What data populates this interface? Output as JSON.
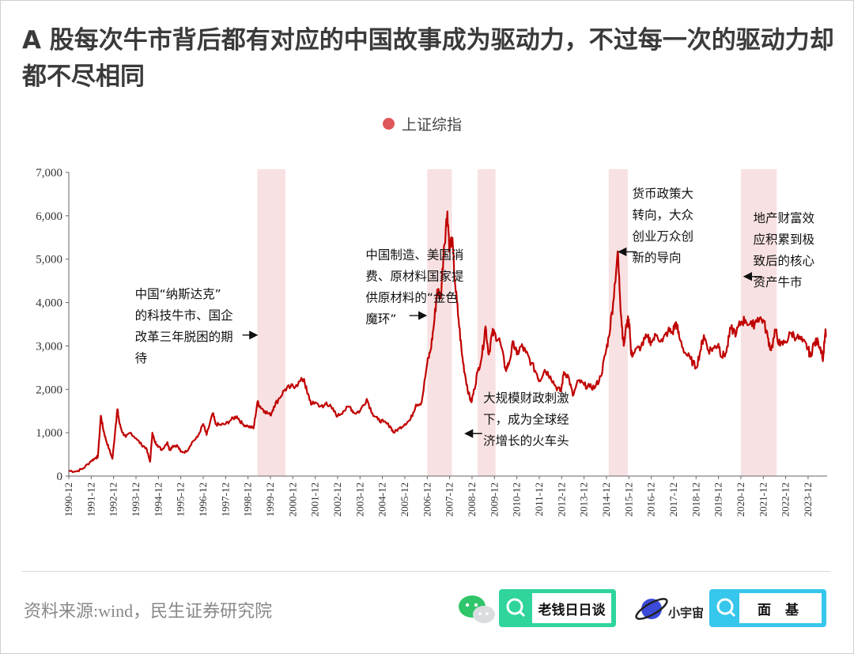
{
  "title": "A 股每次牛市背后都有对应的中国故事成为驱动力，不过每一次的驱动力却都不尽相同",
  "legend": {
    "label": "上证综指",
    "color": "#e0575b"
  },
  "chart_data": {
    "type": "line",
    "title": "A 股每次牛市背后都有对应的中国故事成为驱动力，不过每一次的驱动力却都不尽相同",
    "series": [
      {
        "name": "上证综指",
        "color": "#c00000",
        "points": [
          [
            1990.95,
            120
          ],
          [
            1991.3,
            110
          ],
          [
            1991.6,
            180
          ],
          [
            1991.95,
            350
          ],
          [
            1992.15,
            420
          ],
          [
            1992.25,
            450
          ],
          [
            1992.38,
            1390
          ],
          [
            1992.48,
            1100
          ],
          [
            1992.6,
            850
          ],
          [
            1992.75,
            620
          ],
          [
            1992.9,
            400
          ],
          [
            1993.05,
            1200
          ],
          [
            1993.12,
            1540
          ],
          [
            1993.22,
            1200
          ],
          [
            1993.35,
            1000
          ],
          [
            1993.5,
            900
          ],
          [
            1993.7,
            1000
          ],
          [
            1993.95,
            870
          ],
          [
            1994.2,
            720
          ],
          [
            1994.4,
            650
          ],
          [
            1994.58,
            330
          ],
          [
            1994.68,
            1000
          ],
          [
            1994.78,
            800
          ],
          [
            1994.9,
            720
          ],
          [
            1995.1,
            600
          ],
          [
            1995.35,
            780
          ],
          [
            1995.45,
            600
          ],
          [
            1995.6,
            700
          ],
          [
            1995.8,
            700
          ],
          [
            1995.95,
            560
          ],
          [
            1996.2,
            560
          ],
          [
            1996.45,
            780
          ],
          [
            1996.7,
            900
          ],
          [
            1996.95,
            1200
          ],
          [
            1997.1,
            950
          ],
          [
            1997.38,
            1450
          ],
          [
            1997.5,
            1200
          ],
          [
            1997.7,
            1180
          ],
          [
            1997.95,
            1200
          ],
          [
            1998.2,
            1300
          ],
          [
            1998.45,
            1380
          ],
          [
            1998.7,
            1200
          ],
          [
            1998.95,
            1150
          ],
          [
            1999.2,
            1100
          ],
          [
            1999.37,
            1700
          ],
          [
            1999.5,
            1600
          ],
          [
            1999.7,
            1500
          ],
          [
            1999.95,
            1400
          ],
          [
            2000.1,
            1600
          ],
          [
            2000.35,
            1800
          ],
          [
            2000.6,
            2000
          ],
          [
            2000.85,
            2050
          ],
          [
            2001.1,
            2100
          ],
          [
            2001.45,
            2240
          ],
          [
            2001.6,
            1900
          ],
          [
            2001.8,
            1650
          ],
          [
            2001.95,
            1700
          ],
          [
            2002.3,
            1580
          ],
          [
            2002.45,
            1700
          ],
          [
            2002.7,
            1550
          ],
          [
            2002.95,
            1380
          ],
          [
            2003.2,
            1500
          ],
          [
            2003.5,
            1600
          ],
          [
            2003.7,
            1450
          ],
          [
            2003.95,
            1500
          ],
          [
            2004.25,
            1780
          ],
          [
            2004.5,
            1450
          ],
          [
            2004.75,
            1300
          ],
          [
            2005.0,
            1250
          ],
          [
            2005.3,
            1150
          ],
          [
            2005.45,
            1000
          ],
          [
            2005.7,
            1100
          ],
          [
            2005.95,
            1200
          ],
          [
            2006.2,
            1300
          ],
          [
            2006.45,
            1650
          ],
          [
            2006.7,
            1700
          ],
          [
            2006.95,
            2600
          ],
          [
            2007.1,
            2900
          ],
          [
            2007.25,
            3500
          ],
          [
            2007.4,
            4300
          ],
          [
            2007.55,
            4100
          ],
          [
            2007.7,
            5300
          ],
          [
            2007.85,
            6100
          ],
          [
            2007.95,
            5200
          ],
          [
            2008.05,
            5500
          ],
          [
            2008.2,
            4400
          ],
          [
            2008.35,
            3600
          ],
          [
            2008.5,
            2800
          ],
          [
            2008.65,
            2300
          ],
          [
            2008.8,
            1900
          ],
          [
            2008.92,
            1700
          ],
          [
            2009.05,
            2000
          ],
          [
            2009.2,
            2400
          ],
          [
            2009.4,
            2800
          ],
          [
            2009.55,
            3450
          ],
          [
            2009.7,
            2800
          ],
          [
            2009.85,
            3300
          ],
          [
            2010.0,
            3250
          ],
          [
            2010.2,
            3100
          ],
          [
            2010.45,
            2450
          ],
          [
            2010.6,
            2600
          ],
          [
            2010.8,
            3100
          ],
          [
            2010.95,
            2800
          ],
          [
            2011.15,
            3000
          ],
          [
            2011.35,
            2850
          ],
          [
            2011.6,
            2600
          ],
          [
            2011.85,
            2350
          ],
          [
            2011.95,
            2200
          ],
          [
            2012.2,
            2450
          ],
          [
            2012.45,
            2300
          ],
          [
            2012.7,
            2050
          ],
          [
            2012.92,
            1950
          ],
          [
            2013.05,
            2400
          ],
          [
            2013.25,
            2300
          ],
          [
            2013.45,
            1850
          ],
          [
            2013.7,
            2200
          ],
          [
            2013.95,
            2100
          ],
          [
            2014.2,
            2050
          ],
          [
            2014.45,
            2050
          ],
          [
            2014.7,
            2300
          ],
          [
            2014.9,
            2800
          ],
          [
            2015.05,
            3200
          ],
          [
            2015.25,
            4000
          ],
          [
            2015.45,
            5180
          ],
          [
            2015.55,
            4200
          ],
          [
            2015.62,
            3600
          ],
          [
            2015.72,
            3000
          ],
          [
            2015.88,
            3600
          ],
          [
            2015.98,
            3500
          ],
          [
            2016.05,
            2800
          ],
          [
            2016.2,
            2850
          ],
          [
            2016.5,
            3000
          ],
          [
            2016.75,
            3200
          ],
          [
            2016.95,
            3100
          ],
          [
            2017.2,
            3250
          ],
          [
            2017.45,
            3100
          ],
          [
            2017.7,
            3350
          ],
          [
            2017.9,
            3300
          ],
          [
            2018.05,
            3550
          ],
          [
            2018.2,
            3200
          ],
          [
            2018.45,
            2850
          ],
          [
            2018.7,
            2700
          ],
          [
            2018.95,
            2500
          ],
          [
            2019.15,
            2900
          ],
          [
            2019.3,
            3250
          ],
          [
            2019.5,
            2900
          ],
          [
            2019.75,
            2950
          ],
          [
            2019.95,
            3050
          ],
          [
            2020.1,
            2750
          ],
          [
            2020.3,
            2850
          ],
          [
            2020.5,
            3400
          ],
          [
            2020.75,
            3300
          ],
          [
            2020.95,
            3550
          ],
          [
            2021.15,
            3600
          ],
          [
            2021.45,
            3450
          ],
          [
            2021.7,
            3650
          ],
          [
            2021.95,
            3600
          ],
          [
            2022.15,
            3200
          ],
          [
            2022.3,
            2900
          ],
          [
            2022.5,
            3350
          ],
          [
            2022.7,
            3000
          ],
          [
            2022.95,
            3100
          ],
          [
            2023.2,
            3300
          ],
          [
            2023.45,
            3200
          ],
          [
            2023.7,
            3100
          ],
          [
            2023.95,
            2950
          ],
          [
            2024.05,
            2750
          ],
          [
            2024.2,
            3050
          ],
          [
            2024.4,
            3100
          ],
          [
            2024.55,
            2900
          ],
          [
            2024.62,
            2700
          ],
          [
            2024.72,
            3300
          ],
          [
            2024.75,
            3250
          ]
        ]
      }
    ],
    "x_tick_labels": [
      "1990-12",
      "1991-12",
      "1992-12",
      "1993-12",
      "1994-12",
      "1995-12",
      "1996-12",
      "1997-12",
      "1998-12",
      "1999-12",
      "2000-12",
      "2001-12",
      "2002-12",
      "2003-12",
      "2004-12",
      "2005-12",
      "2006-12",
      "2007-12",
      "2008-12",
      "2009-12",
      "2010-12",
      "2011-12",
      "2012-12",
      "2013-12",
      "2014-12",
      "2015-12",
      "2016-12",
      "2017-12",
      "2018-12",
      "2019-12",
      "2020-12",
      "2021-12",
      "2022-12",
      "2023-12"
    ],
    "x_tick_values": [
      1990.95,
      1991.95,
      1992.95,
      1993.95,
      1994.95,
      1995.95,
      1996.95,
      1997.95,
      1998.95,
      1999.95,
      2000.95,
      2001.95,
      2002.95,
      2003.95,
      2004.95,
      2005.95,
      2006.95,
      2007.95,
      2008.95,
      2009.95,
      2010.95,
      2011.95,
      2012.95,
      2013.95,
      2014.95,
      2015.95,
      2016.95,
      2017.95,
      2018.95,
      2019.95,
      2020.95,
      2021.95,
      2022.95,
      2023.95
    ],
    "y_ticks": [
      0,
      1000,
      2000,
      3000,
      4000,
      5000,
      6000,
      7000
    ],
    "y_tick_labels": [
      "0",
      "1,000",
      "2,000",
      "3,000",
      "4,000",
      "5,000",
      "6,000",
      "7,000"
    ],
    "xlim": [
      1990.95,
      2024.8
    ],
    "ylim": [
      0,
      7000
    ],
    "shaded_periods": [
      [
        1999.37,
        2000.62
      ],
      [
        2006.95,
        2008.05
      ],
      [
        2009.2,
        2010.0
      ],
      [
        2015.05,
        2015.9
      ],
      [
        2020.95,
        2022.55
      ]
    ],
    "annotations": [
      {
        "lines": [
          "中国“纳斯达克”",
          "的科技牛市、国企",
          "改革三年脱困的期",
          "待"
        ],
        "x": 1993.9,
        "y": 4100,
        "arrow_from": [
          1998.7,
          3250
        ],
        "arrow_to": [
          1999.3,
          3250
        ]
      },
      {
        "lines": [
          "中国制造、美国消",
          "费、原材料国家提",
          "供原材料的“金色",
          "魔环”"
        ],
        "x": 2004.2,
        "y": 5000,
        "arrow_from": [
          2006.15,
          3700
        ],
        "arrow_to": [
          2006.85,
          3700
        ]
      },
      {
        "lines": [
          "大规模财政刺激",
          "下，成为全球经",
          "济增长的火车头"
        ],
        "x": 2009.45,
        "y": 1700,
        "arrow_from": [
          2009.4,
          980
        ],
        "arrow_to": [
          2008.7,
          980
        ]
      },
      {
        "lines": [
          "货币政策大",
          "转向，大众",
          "创业万众创",
          "新的导向"
        ],
        "x": 2016.1,
        "y": 6420,
        "arrow_from": [
          2016.3,
          5170
        ],
        "arrow_to": [
          2015.55,
          5170
        ]
      },
      {
        "lines": [
          "地产财富效",
          "应积累到极",
          "致后的核心",
          "资产牛市"
        ],
        "x": 2021.5,
        "y": 5850,
        "arrow_from": [
          2021.9,
          4600
        ],
        "arrow_to": [
          2021.15,
          4600
        ]
      }
    ]
  },
  "footer": {
    "source": "资料来源:wind，民生证券研究院",
    "brand1": "老钱日日谈",
    "brand2_planet": "小宇宙",
    "brand3": "面 基"
  }
}
